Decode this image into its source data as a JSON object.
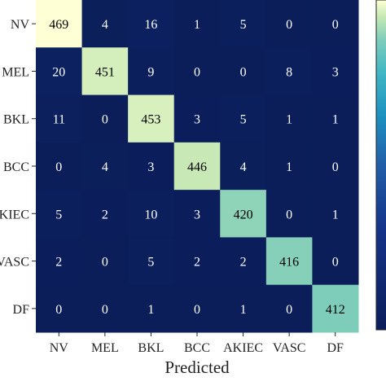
{
  "chart_data": {
    "type": "heatmap",
    "title": "",
    "xlabel": "Predicted",
    "ylabel": "",
    "x_categories": [
      "NV",
      "MEL",
      "BKL",
      "BCC",
      "AKIEC",
      "VASC",
      "DF"
    ],
    "y_categories": [
      "NV",
      "MEL",
      "BKL",
      "BCC",
      "AKIEC",
      "VASC",
      "DF"
    ],
    "y_tick_labels_visible": [
      "NV",
      "MEL",
      "BKL",
      "BCC",
      "AKIEC",
      "VASC",
      "DF"
    ],
    "values": [
      [
        469,
        4,
        16,
        1,
        5,
        0,
        0
      ],
      [
        20,
        451,
        9,
        0,
        0,
        8,
        3
      ],
      [
        11,
        0,
        453,
        3,
        5,
        1,
        1
      ],
      [
        0,
        4,
        3,
        446,
        4,
        1,
        0
      ],
      [
        5,
        2,
        10,
        3,
        420,
        0,
        1
      ],
      [
        2,
        0,
        5,
        2,
        2,
        416,
        0
      ],
      [
        0,
        0,
        1,
        0,
        1,
        0,
        412
      ]
    ],
    "colormap": "YlGnBu_r",
    "value_range": [
      0,
      469
    ],
    "colorbar": true,
    "colors": {
      "low": "#0b1e5a",
      "high": "#feffd5",
      "text_on_dark": "#ffffff",
      "text_on_light": "#000000"
    }
  }
}
